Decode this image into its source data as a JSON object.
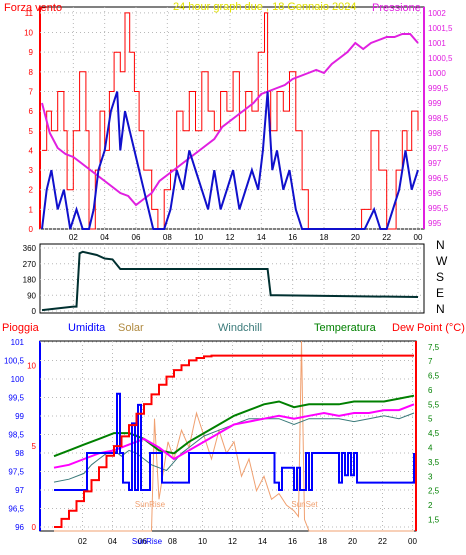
{
  "colors": {
    "wind": "#ff0000",
    "gust_blue": "#1010cc",
    "pressure": "#e020e0",
    "direction": "#003030",
    "rain": "#ff0000",
    "humidity": "#0000ff",
    "solar": "#f0a070",
    "windchill": "#3a7a7a",
    "temperature": "#008000",
    "dewpoint": "#ff00ff",
    "title": "#e0e000",
    "grid": "#b8b8b8"
  },
  "chart_data": [
    {
      "type": "line",
      "title": "24 hour graph due , 18 Gennaio 2024",
      "left_label": "Forza vento",
      "right_label": "Pressione",
      "x_ticks": [
        "02",
        "04",
        "06",
        "08",
        "10",
        "12",
        "14",
        "16",
        "18",
        "20",
        "22",
        "00"
      ],
      "left_ticks": [
        0,
        1,
        2,
        3,
        4,
        5,
        6,
        7,
        8,
        9,
        10,
        11
      ],
      "right_ticks": [
        "995",
        "995,5",
        "996",
        "996,5",
        "997",
        "997,5",
        "998",
        "998,5",
        "999",
        "999,5",
        "1000",
        "1000,5",
        "1001",
        "1001,5",
        "1002"
      ],
      "ylim_left": [
        0,
        11.3
      ],
      "ylim_right": [
        994.8,
        1002.2
      ],
      "series": [
        {
          "key": "wind_max",
          "x": [
            0,
            0.3,
            0.6,
            1.0,
            1.4,
            1.6,
            2.0,
            2.4,
            2.8,
            3.0,
            3.4,
            3.7,
            4.0,
            4.3,
            4.6,
            5.0,
            5.3,
            5.6,
            5.9,
            6.2,
            6.5,
            7.0,
            7.4,
            7.8,
            8.2,
            8.6,
            9.0,
            9.4,
            9.8,
            10.2,
            10.6,
            11.0,
            11.4,
            11.8,
            12.2,
            12.6,
            13.0,
            13.4,
            13.8,
            14.2,
            14.4,
            14.6,
            15.0,
            15.4,
            15.8,
            16.2,
            16.6,
            17.0,
            18.0,
            19.0,
            20.0,
            20.4,
            21.0,
            21.5,
            22.0,
            22.3,
            22.6,
            23.0,
            23.3,
            23.6,
            24.0
          ],
          "y": [
            4,
            6,
            5,
            7,
            5,
            2,
            5,
            8,
            5,
            0,
            3,
            6,
            4,
            7,
            9,
            8,
            11,
            9,
            7,
            5,
            3,
            1,
            0,
            2,
            3,
            6,
            5,
            7,
            5,
            8,
            6,
            5,
            7,
            6,
            8,
            5,
            7,
            6,
            9,
            11,
            7,
            5,
            7,
            6,
            8,
            5,
            2,
            0,
            0,
            0,
            0,
            1,
            5,
            3,
            0,
            0,
            3,
            5,
            4,
            6,
            5
          ]
        },
        {
          "key": "wind_avg",
          "x": [
            0,
            0.3,
            0.6,
            1.0,
            1.4,
            1.8,
            2.2,
            2.6,
            3.0,
            3.3,
            3.6,
            4.0,
            4.4,
            4.8,
            5.0,
            5.3,
            5.6,
            5.9,
            6.2,
            6.5,
            6.8,
            7.1,
            7.4,
            7.8,
            8.2,
            8.6,
            9.0,
            9.4,
            9.8,
            10.2,
            10.6,
            11.0,
            11.4,
            11.8,
            12.2,
            12.6,
            13.0,
            13.4,
            13.8,
            14.1,
            14.4,
            14.7,
            15.0,
            15.4,
            15.8,
            16.2,
            16.6,
            17.0,
            18.0,
            19.0,
            20.0,
            20.6,
            21.2,
            21.6,
            22.0,
            22.4,
            22.8,
            23.2,
            23.6,
            24.0
          ],
          "y": [
            0,
            2,
            3,
            1,
            2,
            0,
            1,
            0,
            0,
            1,
            3,
            4,
            6,
            7,
            4,
            6,
            5,
            4,
            3,
            2,
            1,
            0,
            0,
            0,
            1,
            3,
            2,
            4,
            3,
            2,
            1,
            3,
            1,
            2,
            3,
            1,
            2,
            3,
            2,
            4,
            7,
            3,
            4,
            2,
            3,
            1,
            0,
            0,
            0,
            0,
            0,
            0,
            1,
            0,
            0,
            1,
            2,
            4,
            2,
            3
          ]
        },
        {
          "key": "pressure",
          "x": [
            0,
            0.5,
            1,
            1.5,
            2,
            2.5,
            3,
            3.5,
            4,
            4.5,
            5,
            5.5,
            6,
            6.5,
            7,
            7.5,
            8,
            8.5,
            9,
            9.5,
            10,
            10.5,
            11,
            11.5,
            12,
            12.5,
            13,
            13.5,
            14,
            14.5,
            15,
            15.5,
            16,
            16.5,
            17,
            17.5,
            18,
            18.5,
            19,
            19.5,
            20,
            20.5,
            21,
            21.5,
            22,
            22.5,
            23,
            23.5,
            24
          ],
          "y": [
            999,
            998,
            997.5,
            997.3,
            997.2,
            997,
            996.8,
            996.6,
            996.4,
            996.2,
            996,
            995.9,
            995.6,
            995.8,
            996,
            996.4,
            996.6,
            996.8,
            997,
            997.2,
            997.4,
            997.6,
            997.8,
            998.2,
            998.4,
            998.6,
            998.8,
            999,
            999.3,
            999.4,
            999.5,
            999.6,
            999.8,
            999.9,
            1000,
            1000.1,
            1000,
            1000.3,
            1000.5,
            1000.7,
            1001,
            1000.8,
            1001,
            1001.1,
            1001.2,
            1001.2,
            1001.3,
            1001.3,
            1001
          ]
        }
      ]
    },
    {
      "type": "line",
      "right_labels": [
        "N",
        "W",
        "S",
        "E",
        "N"
      ],
      "left_ticks": [
        0,
        90,
        180,
        270,
        360
      ],
      "ylim": [
        0,
        360
      ],
      "series": [
        {
          "key": "direction",
          "x": [
            0,
            2,
            2.2,
            2.4,
            2.6,
            3.5,
            4,
            4.5,
            5,
            14.4,
            14.6,
            15,
            24
          ],
          "y": [
            5,
            25,
            25,
            330,
            338,
            320,
            300,
            295,
            240,
            240,
            90,
            90,
            80
          ]
        }
      ]
    },
    {
      "type": "line",
      "legend": [
        "Pioggia",
        "Umidita",
        "Solar",
        "Windchill",
        "Temperatura",
        "Dew Point (°C)"
      ],
      "left_ticks": [
        "96",
        "96,5",
        "97",
        "97,5",
        "98",
        "98,5",
        "99",
        "99,5",
        "100",
        "100,5",
        "101"
      ],
      "rain_ticks": [
        "0",
        "5",
        "10"
      ],
      "right_ticks": [
        "1,5",
        "2",
        "2,5",
        "3",
        "3,5",
        "4",
        "4,5",
        "5",
        "5,5",
        "6",
        "6,5",
        "7",
        "7,5"
      ],
      "x_ticks": [
        "02",
        "04",
        "06",
        "08",
        "10",
        "12",
        "14",
        "16",
        "18",
        "20",
        "22",
        "00"
      ],
      "annotations": [
        "SunRise",
        "SunSet",
        "SunRise"
      ],
      "ylim_humidity": [
        96,
        101
      ],
      "ylim_rain": [
        0,
        11.5
      ],
      "ylim_temp": [
        1.1,
        7.7
      ],
      "series": [
        {
          "key": "rain",
          "x": [
            0,
            0.5,
            1,
            1.5,
            2,
            2.5,
            3,
            3.5,
            4,
            4.5,
            5,
            5.5,
            6,
            6.5,
            7,
            7.5,
            8,
            8.5,
            9,
            9.5,
            10,
            10.5,
            24
          ],
          "y": [
            0,
            0.5,
            1,
            1.6,
            2.2,
            2.9,
            3.7,
            4.4,
            5,
            5.6,
            6.3,
            7,
            7.6,
            8.2,
            8.8,
            9.3,
            9.7,
            10,
            10.3,
            10.45,
            10.55,
            10.6,
            10.6
          ]
        },
        {
          "key": "humidity",
          "x": [
            0,
            2,
            2.2,
            3.8,
            4,
            4.2,
            4.4,
            4.6,
            5,
            5.2,
            5.4,
            5.6,
            5.8,
            6.2,
            6.4,
            7,
            7.2,
            9,
            14.5,
            14.7,
            15,
            15.2,
            16,
            16.2,
            16.4,
            16.8,
            17,
            17.2,
            19,
            19.2,
            19.4,
            19.6,
            19.8,
            20,
            20.2,
            24
          ],
          "y": [
            97,
            97,
            98,
            98,
            98,
            99.6,
            98,
            97.2,
            97,
            98.8,
            97,
            99.3,
            97,
            97,
            98,
            98,
            97.2,
            98,
            98,
            97.2,
            97,
            97.6,
            97,
            97.6,
            97,
            98,
            97,
            98,
            97.2,
            98,
            97.4,
            98,
            97.4,
            98,
            97.2,
            98
          ]
        },
        {
          "key": "solar",
          "x": [
            0,
            6.5,
            6.7,
            7,
            7.3,
            7.6,
            8,
            8.5,
            9,
            9.5,
            10,
            10.5,
            11,
            11.5,
            12,
            12.5,
            13,
            13.5,
            14,
            14.5,
            15,
            15.5,
            16,
            16.3,
            16.5,
            16.7,
            17,
            24
          ],
          "y": [
            1.1,
            1.1,
            5,
            2.2,
            3.2,
            4.2,
            3.6,
            4.6,
            4,
            5.2,
            4.4,
            3.6,
            4.6,
            3.8,
            4.2,
            3,
            3.6,
            2.5,
            3,
            2.2,
            2.4,
            2,
            1.8,
            1.6,
            7.7,
            1.5,
            1.1,
            1.1
          ]
        },
        {
          "key": "windchill",
          "x": [
            0,
            1,
            2,
            2.5,
            3,
            3.5,
            4,
            4.5,
            5,
            5.5,
            6,
            6.5,
            7,
            7.5,
            8,
            8.5,
            9,
            10,
            11,
            12,
            13,
            14,
            15,
            16,
            17,
            18,
            19,
            20,
            21,
            22,
            23,
            24
          ],
          "y": [
            2.8,
            2.9,
            3.1,
            3.4,
            3.6,
            3.8,
            3.9,
            3.7,
            3.9,
            3.8,
            3.6,
            3.4,
            3.3,
            3.2,
            3.5,
            3.8,
            4,
            4.4,
            4.6,
            4.8,
            5,
            5,
            5,
            4.8,
            5,
            5,
            5,
            4.9,
            5,
            5.1,
            5,
            5.2
          ]
        },
        {
          "key": "temperature",
          "x": [
            0,
            1,
            2,
            3,
            4,
            5,
            6,
            7,
            8,
            9,
            10,
            11,
            12,
            13,
            14,
            15,
            16,
            17,
            18,
            19,
            20,
            21,
            22,
            23,
            24
          ],
          "y": [
            3.7,
            3.9,
            4.1,
            4.3,
            4.5,
            4.5,
            4.3,
            3.9,
            3.8,
            4.2,
            4.5,
            4.8,
            5.1,
            5.3,
            5.5,
            5.6,
            5.4,
            5.5,
            5.5,
            5.5,
            5.6,
            5.6,
            5.6,
            5.7,
            5.8
          ]
        },
        {
          "key": "dewpoint",
          "x": [
            0,
            1,
            2,
            3,
            4,
            5,
            6,
            7,
            8,
            9,
            10,
            11,
            12,
            13,
            14,
            15,
            16,
            17,
            18,
            19,
            20,
            21,
            22,
            23,
            24
          ],
          "y": [
            3.3,
            3.4,
            3.6,
            3.8,
            3.9,
            4.1,
            4.3,
            4,
            3.6,
            3.9,
            4.2,
            4.5,
            4.8,
            4.9,
            5,
            5.1,
            5,
            5.1,
            5.2,
            5.1,
            5.2,
            5.2,
            5.3,
            5.3,
            5.5
          ]
        }
      ]
    }
  ]
}
